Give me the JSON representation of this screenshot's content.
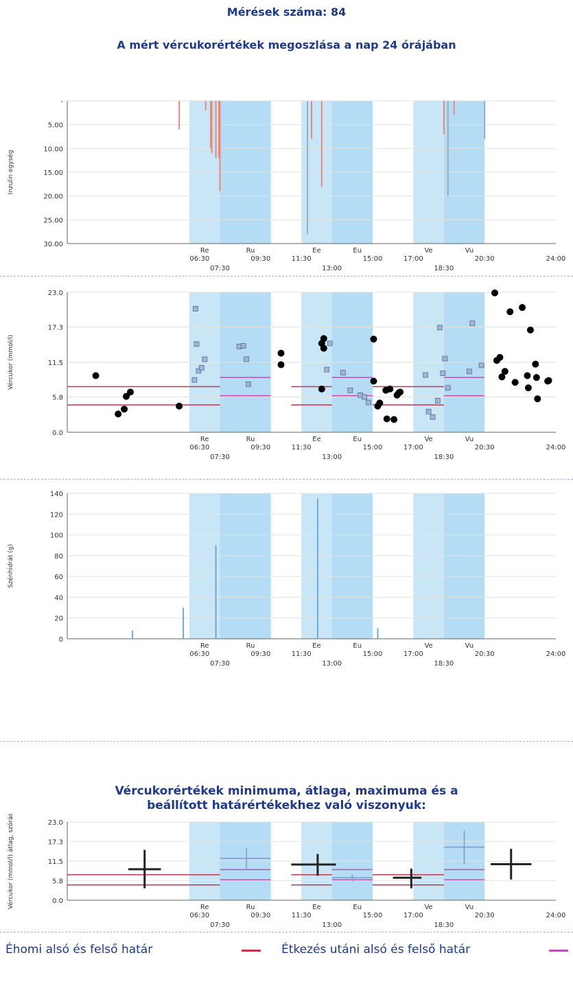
{
  "header": {
    "count_title": "Mérések száma: 84",
    "dist_title": "A mért vércukorértékek megoszlása a nap 24 órájában"
  },
  "stats_title": {
    "line1": "Vércukorértékek minimuma, átlaga, maximuma és a",
    "line2": "beállított határértékekhez való viszonyuk:"
  },
  "legend": {
    "fasting_label": "Éhomi alsó és felső határ",
    "fasting_color": "#c8324e",
    "post_meal_label": "Étkezés utáni alsó és felső határ",
    "post_meal_color": "#c24fb8"
  },
  "colors": {
    "band": "#c9e6f7",
    "band_dark": "#b4dcf4",
    "insulin": "#e28a7f",
    "insulin_long": "#9aa9c2",
    "carbs": "#6fa8dc",
    "dot": "#000000",
    "square": "#9fb4d9",
    "grid": "#e2e2e2"
  },
  "time_axis": {
    "upper_ticks": [
      {
        "x": 6.5,
        "label": "06:30"
      },
      {
        "x": 9.5,
        "label": "09:30"
      },
      {
        "x": 11.5,
        "label": "11:30"
      },
      {
        "x": 15.0,
        "label": "15:00"
      },
      {
        "x": 17.0,
        "label": "17:00"
      },
      {
        "x": 20.5,
        "label": "20:30"
      },
      {
        "x": 24.0,
        "label": "24:00"
      }
    ],
    "lower_ticks": [
      {
        "x": 7.5,
        "label": "07:30"
      },
      {
        "x": 13.0,
        "label": "13:00"
      },
      {
        "x": 18.5,
        "label": "18:30"
      }
    ],
    "meal_labels": [
      {
        "x": 6.75,
        "label": "Re"
      },
      {
        "x": 9.0,
        "label": "Ru"
      },
      {
        "x": 12.25,
        "label": "Ee"
      },
      {
        "x": 14.25,
        "label": "Eu"
      },
      {
        "x": 17.75,
        "label": "Ve"
      },
      {
        "x": 19.75,
        "label": "Vu"
      }
    ]
  },
  "chart_data": [
    {
      "type": "bar",
      "name": "insulin",
      "ylabel": "Inzulin egység",
      "ylim": [
        0,
        30
      ],
      "y_ticks": [
        "-",
        "5.00",
        "10.00",
        "15.00",
        "20.00",
        "25.00",
        "30.00"
      ],
      "bands": [
        [
          6.0,
          7.5
        ],
        [
          7.5,
          10.0
        ],
        [
          11.5,
          13.0
        ],
        [
          13.0,
          15.0
        ],
        [
          17.0,
          18.5
        ],
        [
          18.5,
          20.5
        ]
      ],
      "x": [
        5.5,
        6.8,
        7.05,
        7.1,
        7.3,
        7.45,
        7.5,
        11.8,
        12.0,
        12.5,
        18.5,
        18.7,
        19.0,
        20.5
      ],
      "values": [
        6,
        2,
        10,
        11,
        12,
        12,
        19,
        28,
        8,
        18,
        7,
        20,
        3,
        8
      ],
      "kinds": [
        "bolus",
        "bolus",
        "bolus",
        "bolus",
        "bolus",
        "bolus",
        "bolus",
        "long",
        "bolus",
        "bolus",
        "bolus",
        "long",
        "bolus",
        "long"
      ]
    },
    {
      "type": "scatter",
      "name": "glucose",
      "ylabel": "Vércukor (mmol/l)",
      "ylim": [
        0,
        23
      ],
      "y_ticks": [
        "0.0",
        "5.8",
        "11.5",
        "17.3",
        "23.0"
      ],
      "y_tick_values": [
        0,
        5.8,
        11.5,
        17.3,
        23
      ],
      "bands": [
        [
          6.0,
          7.5
        ],
        [
          7.5,
          10.0
        ],
        [
          11.5,
          13.0
        ],
        [
          13.0,
          15.0
        ],
        [
          17.0,
          18.5
        ],
        [
          18.5,
          20.5
        ]
      ],
      "circles": {
        "x": [
          1.4,
          2.5,
          2.8,
          2.9,
          3.1,
          5.5,
          10.5,
          10.5,
          12.5,
          12.5,
          12.6,
          12.6,
          15.05,
          15.05,
          15.25,
          15.35,
          15.65,
          15.7,
          15.85,
          16.05,
          16.2,
          16.3,
          16.35,
          21.0,
          21.1,
          21.25,
          21.35,
          21.5,
          21.75,
          22.0,
          22.35,
          22.6,
          22.65,
          22.75,
          23.0,
          23.05,
          23.1,
          23.6,
          23.65
        ],
        "y": [
          9.3,
          3.0,
          3.8,
          5.9,
          6.6,
          4.3,
          13.0,
          11.1,
          7.1,
          14.6,
          13.8,
          15.4,
          8.4,
          15.3,
          4.3,
          4.8,
          6.9,
          2.2,
          7.1,
          2.1,
          6.1,
          6.5,
          6.6,
          22.9,
          11.8,
          12.3,
          9.1,
          10.0,
          19.8,
          8.2,
          20.5,
          9.3,
          7.3,
          16.8,
          11.2,
          9.0,
          5.5,
          8.4,
          8.5
        ],
        "filled": [
          true,
          true,
          true,
          true,
          true,
          true,
          true,
          true,
          true,
          true,
          true,
          true,
          true,
          true,
          true,
          true,
          true,
          true,
          true,
          true,
          true,
          true,
          true,
          true,
          true,
          true,
          true,
          true,
          true,
          true,
          true,
          true,
          true,
          true,
          true,
          true,
          true,
          true,
          true
        ]
      },
      "squares": {
        "x": [
          6.25,
          6.3,
          6.35,
          6.45,
          6.6,
          6.75,
          8.45,
          8.65,
          8.8,
          8.9,
          12.75,
          12.9,
          13.55,
          13.9,
          14.4,
          14.6,
          14.8,
          17.6,
          17.75,
          17.95,
          18.2,
          18.3,
          18.45,
          18.55,
          18.7,
          19.75,
          19.9,
          20.35
        ],
        "y": [
          8.6,
          20.3,
          14.5,
          10.1,
          10.6,
          12.0,
          14.1,
          14.2,
          12.0,
          7.9,
          10.3,
          14.6,
          9.8,
          6.9,
          6.1,
          5.8,
          4.9,
          9.4,
          3.4,
          2.5,
          5.2,
          17.2,
          9.7,
          12.1,
          7.3,
          10.0,
          17.9,
          11.0
        ]
      },
      "fasting_limits": [
        4.5,
        7.5
      ],
      "postmeal_limits": [
        6.0,
        9.0
      ]
    },
    {
      "type": "bar",
      "name": "carbs",
      "ylabel": "Szénhidrát (g)",
      "ylim": [
        0,
        140
      ],
      "y_ticks": [
        "0",
        "20",
        "40",
        "60",
        "80",
        "100",
        "120",
        "140"
      ],
      "y_tick_values": [
        0,
        20,
        40,
        60,
        80,
        100,
        120,
        140
      ],
      "bands": [
        [
          6.0,
          7.5
        ],
        [
          7.5,
          10.0
        ],
        [
          11.5,
          13.0
        ],
        [
          13.0,
          15.0
        ],
        [
          17.0,
          18.5
        ],
        [
          18.5,
          20.5
        ]
      ],
      "x": [
        3.2,
        5.7,
        7.3,
        12.3,
        15.25
      ],
      "values": [
        8,
        30,
        90,
        135,
        10
      ]
    },
    {
      "type": "box",
      "name": "stats",
      "ylabel": "Vércukor (mmol/l) átlag, szórás",
      "ylim": [
        0,
        23
      ],
      "y_ticks": [
        "0.0",
        "5.8",
        "11.5",
        "17.3",
        "23.0"
      ],
      "y_tick_values": [
        0,
        5.8,
        11.5,
        17.3,
        23
      ],
      "bands": [
        [
          6.0,
          7.5
        ],
        [
          7.5,
          10.0
        ],
        [
          11.5,
          13.0
        ],
        [
          13.0,
          15.0
        ],
        [
          17.0,
          18.5
        ],
        [
          18.5,
          20.5
        ]
      ],
      "groups": [
        {
          "x0": 3.0,
          "x1": 4.6,
          "mean": 9.1,
          "min": 3.5,
          "max": 14.8,
          "dark": true,
          "cx": 3.8
        },
        {
          "x0": 7.5,
          "x1": 10.0,
          "mean": 12.3,
          "min": 9.3,
          "max": 15.4,
          "dark": false,
          "cx": 8.8
        },
        {
          "x0": 11.0,
          "x1": 13.2,
          "mean": 10.5,
          "min": 7.2,
          "max": 13.6,
          "dark": true,
          "cx": 12.3
        },
        {
          "x0": 13.0,
          "x1": 15.0,
          "mean": 6.6,
          "min": 5.5,
          "max": 7.5,
          "dark": false,
          "cx": 14.0
        },
        {
          "x0": 16.0,
          "x1": 17.4,
          "mean": 6.6,
          "min": 3.5,
          "max": 9.3,
          "dark": true,
          "cx": 16.9
        },
        {
          "x0": 18.5,
          "x1": 20.5,
          "mean": 15.6,
          "min": 10.5,
          "max": 20.5,
          "dark": false,
          "cx": 19.5
        },
        {
          "x0": 20.8,
          "x1": 22.8,
          "mean": 10.6,
          "min": 6.1,
          "max": 15.1,
          "dark": true,
          "cx": 21.8
        }
      ],
      "fasting_limits": [
        4.5,
        7.5
      ],
      "postmeal_limits": [
        6.0,
        9.0
      ]
    }
  ]
}
